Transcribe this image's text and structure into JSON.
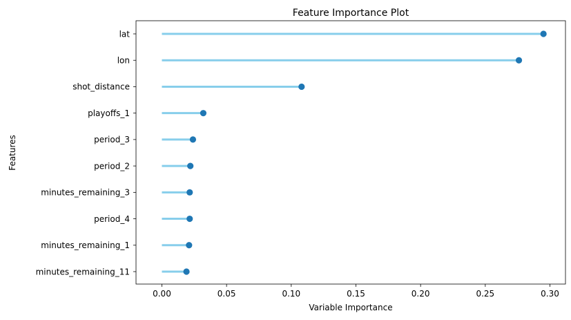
{
  "chart_data": {
    "type": "lollipop",
    "title": "Feature Importance Plot",
    "xlabel": "Variable Importance",
    "ylabel": "Features",
    "xlim": [
      -0.02,
      0.312
    ],
    "xticks": [
      0.0,
      0.05,
      0.1,
      0.15,
      0.2,
      0.25,
      0.3
    ],
    "xtick_labels": [
      "0.00",
      "0.05",
      "0.10",
      "0.15",
      "0.20",
      "0.25",
      "0.30"
    ],
    "grid": false,
    "categories": [
      "lat",
      "lon",
      "shot_distance",
      "playoffs_1",
      "period_3",
      "period_2",
      "minutes_remaining_3",
      "period_4",
      "minutes_remaining_1",
      "minutes_remaining_11"
    ],
    "values": [
      0.295,
      0.276,
      0.108,
      0.032,
      0.024,
      0.022,
      0.0215,
      0.0215,
      0.021,
      0.019
    ],
    "stem_color": "#87ceeb",
    "marker_color": "#1f77b4"
  }
}
